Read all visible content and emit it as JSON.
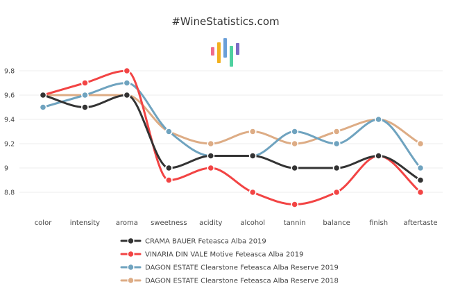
{
  "chart_data": {
    "type": "line",
    "title": "#WineStatistics.com",
    "logo_colors": [
      "#f06c8c",
      "#f2b01e",
      "#6a9fd8",
      "#4fd1a0",
      "#7b6cc4"
    ],
    "categories": [
      "color",
      "intensity",
      "aroma",
      "sweetness",
      "acidity",
      "alcohol",
      "tannin",
      "balance",
      "finish",
      "aftertaste"
    ],
    "y_ticks": [
      "9.8",
      "9.6",
      "9.4",
      "9.2",
      "9",
      "8.8"
    ],
    "y_tick_values": [
      9.8,
      9.6,
      9.4,
      9.2,
      9.0,
      8.8
    ],
    "ylim": [
      8.62,
      9.97
    ],
    "xlabel": "",
    "ylabel": "",
    "grid": true,
    "legend_position": "bottom",
    "series": [
      {
        "name": "CRAMA BAUER Feteasca Alba 2019",
        "color": "#333333",
        "values": [
          9.6,
          9.5,
          9.6,
          9.0,
          9.1,
          9.1,
          9.0,
          9.0,
          9.1,
          8.9
        ]
      },
      {
        "name": "VINARIA DIN VALE Motive Feteasca Alba 2019",
        "color": "#f24444",
        "values": [
          9.6,
          9.7,
          9.8,
          8.9,
          9.0,
          8.8,
          8.7,
          8.8,
          9.1,
          8.8
        ]
      },
      {
        "name": "DAGON ESTATE Clearstone Feteasca Alba Reserve 2019",
        "color": "#6fa3bf",
        "values": [
          9.5,
          9.6,
          9.7,
          9.3,
          9.1,
          9.1,
          9.3,
          9.2,
          9.4,
          9.0
        ]
      },
      {
        "name": "DAGON ESTATE Clearstone Feteasca Alba Reserve 2018",
        "color": "#ddac85",
        "values": [
          9.6,
          9.6,
          9.6,
          9.3,
          9.2,
          9.3,
          9.2,
          9.3,
          9.4,
          9.2
        ]
      }
    ]
  }
}
